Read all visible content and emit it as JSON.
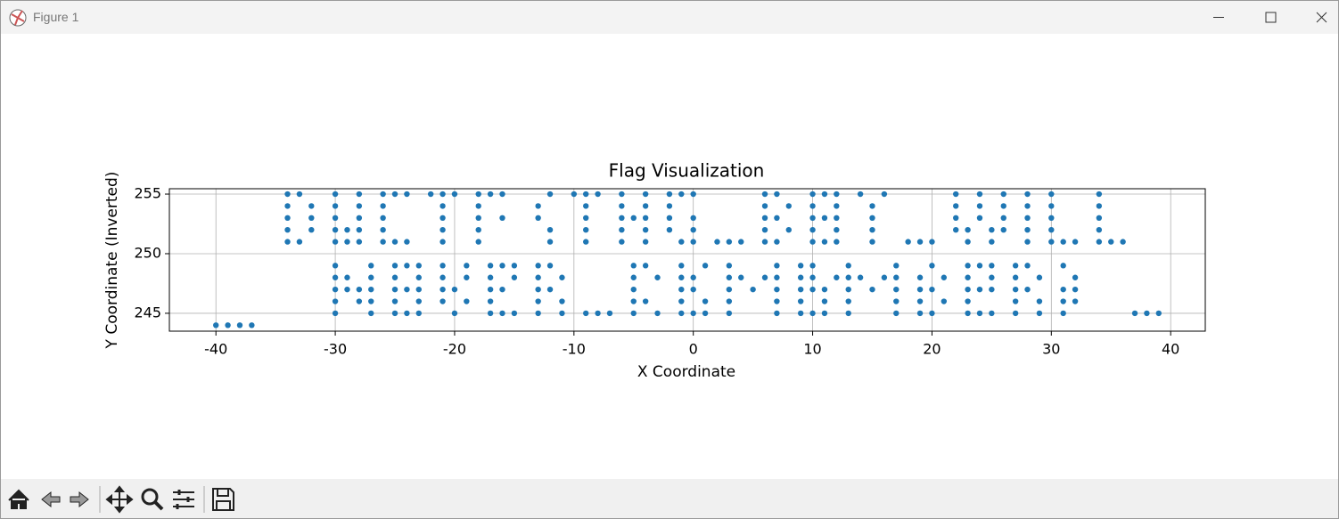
{
  "window": {
    "title": "Figure 1"
  },
  "chart_data": {
    "type": "scatter",
    "title": "Flag Visualization",
    "x_label": "X Coordinate",
    "y_label": "Y Coordinate (Inverted)",
    "color": "#1f77b4",
    "grid": true,
    "xlim": [
      -43.9,
      42.9
    ],
    "ylim": [
      243.5,
      255.45
    ],
    "xticks": [
      -40,
      -30,
      -20,
      -10,
      0,
      10,
      20,
      30,
      40
    ],
    "yticks": [
      245,
      250,
      255
    ],
    "x": [
      -34,
      -33,
      -30,
      -28,
      -26,
      -25,
      -24,
      -22,
      -21,
      -20,
      -18,
      -17,
      -16,
      -12,
      -10,
      -9,
      -8,
      -6,
      -4,
      -2,
      -1,
      0,
      6,
      7,
      10,
      11,
      12,
      14,
      16,
      22,
      24,
      26,
      28,
      30,
      34,
      -34,
      -32,
      -30,
      -28,
      -26,
      -21,
      -18,
      -13,
      -9,
      -6,
      -4,
      -2,
      6,
      8,
      10,
      12,
      15,
      22,
      24,
      26,
      28,
      30,
      34,
      -34,
      -32,
      -30,
      -28,
      -26,
      -21,
      -18,
      -16,
      -13,
      -9,
      -6,
      -5,
      -4,
      -2,
      0,
      6,
      7,
      10,
      11,
      12,
      15,
      22,
      24,
      26,
      28,
      30,
      34,
      -34,
      -32,
      -30,
      -29,
      -28,
      -26,
      -21,
      -18,
      -12,
      -9,
      -6,
      -4,
      -2,
      0,
      6,
      8,
      10,
      12,
      15,
      22,
      23,
      25,
      26,
      28,
      30,
      34,
      -34,
      -33,
      -30,
      -29,
      -28,
      -26,
      -25,
      -24,
      -21,
      -18,
      -12,
      -9,
      -6,
      -4,
      -1,
      0,
      2,
      3,
      4,
      6,
      7,
      10,
      11,
      12,
      15,
      18,
      19,
      20,
      23,
      25,
      28,
      30,
      31,
      32,
      34,
      35,
      36,
      -30,
      -27,
      -25,
      -24,
      -23,
      -21,
      -19,
      -17,
      -16,
      -15,
      -13,
      -12,
      -5,
      -4,
      -1,
      1,
      3,
      7,
      9,
      10,
      13,
      17,
      20,
      23,
      24,
      25,
      27,
      28,
      31,
      -30,
      -29,
      -27,
      -25,
      -23,
      -21,
      -19,
      -17,
      -15,
      -13,
      -11,
      -5,
      -3,
      -1,
      0,
      3,
      4,
      6,
      7,
      9,
      10,
      12,
      13,
      14,
      16,
      17,
      19,
      21,
      23,
      25,
      27,
      29,
      32,
      -30,
      -29,
      -28,
      -27,
      -25,
      -24,
      -23,
      -21,
      -20,
      -17,
      -16,
      -13,
      -12,
      -5,
      -1,
      0,
      3,
      5,
      7,
      9,
      10,
      11,
      13,
      15,
      17,
      19,
      20,
      23,
      24,
      25,
      27,
      28,
      31,
      32,
      -30,
      -28,
      -27,
      -25,
      -23,
      -21,
      -19,
      -17,
      -13,
      -11,
      -5,
      -4,
      -1,
      1,
      3,
      7,
      9,
      11,
      13,
      17,
      19,
      21,
      23,
      27,
      29,
      31,
      32,
      -30,
      -27,
      -25,
      -24,
      -23,
      -20,
      -17,
      -16,
      -15,
      -13,
      -11,
      -9,
      -8,
      -7,
      -5,
      -3,
      -1,
      0,
      1,
      3,
      7,
      9,
      10,
      11,
      13,
      17,
      19,
      20,
      23,
      24,
      25,
      27,
      29,
      31,
      37,
      38,
      39,
      -40,
      -39,
      -38,
      -37
    ],
    "values": [
      255,
      255,
      255,
      255,
      255,
      255,
      255,
      255,
      255,
      255,
      255,
      255,
      255,
      255,
      255,
      255,
      255,
      255,
      255,
      255,
      255,
      255,
      255,
      255,
      255,
      255,
      255,
      255,
      255,
      255,
      255,
      255,
      255,
      255,
      255,
      254,
      254,
      254,
      254,
      254,
      254,
      254,
      254,
      254,
      254,
      254,
      254,
      254,
      254,
      254,
      254,
      254,
      254,
      254,
      254,
      254,
      254,
      254,
      253,
      253,
      253,
      253,
      253,
      253,
      253,
      253,
      253,
      253,
      253,
      253,
      253,
      253,
      253,
      253,
      253,
      253,
      253,
      253,
      253,
      253,
      253,
      253,
      253,
      253,
      253,
      252,
      252,
      252,
      252,
      252,
      252,
      252,
      252,
      252,
      252,
      252,
      252,
      252,
      252,
      252,
      252,
      252,
      252,
      252,
      252,
      252,
      252,
      252,
      252,
      252,
      252,
      251,
      251,
      251,
      251,
      251,
      251,
      251,
      251,
      251,
      251,
      251,
      251,
      251,
      251,
      251,
      251,
      251,
      251,
      251,
      251,
      251,
      251,
      251,
      251,
      251,
      251,
      251,
      251,
      251,
      251,
      251,
      251,
      251,
      251,
      251,
      251,
      251,
      249,
      249,
      249,
      249,
      249,
      249,
      249,
      249,
      249,
      249,
      249,
      249,
      249,
      249,
      249,
      249,
      249,
      249,
      249,
      249,
      249,
      249,
      249,
      249,
      249,
      249,
      249,
      249,
      249,
      248,
      248,
      248,
      248,
      248,
      248,
      248,
      248,
      248,
      248,
      248,
      248,
      248,
      248,
      248,
      248,
      248,
      248,
      248,
      248,
      248,
      248,
      248,
      248,
      248,
      248,
      248,
      248,
      248,
      248,
      248,
      248,
      248,
      247,
      247,
      247,
      247,
      247,
      247,
      247,
      247,
      247,
      247,
      247,
      247,
      247,
      247,
      247,
      247,
      247,
      247,
      247,
      247,
      247,
      247,
      247,
      247,
      247,
      247,
      247,
      247,
      247,
      247,
      247,
      247,
      247,
      247,
      246,
      246,
      246,
      246,
      246,
      246,
      246,
      246,
      246,
      246,
      246,
      246,
      246,
      246,
      246,
      246,
      246,
      246,
      246,
      246,
      246,
      246,
      246,
      246,
      246,
      246,
      246,
      245,
      245,
      245,
      245,
      245,
      245,
      245,
      245,
      245,
      245,
      245,
      245,
      245,
      245,
      245,
      245,
      245,
      245,
      245,
      245,
      245,
      245,
      245,
      245,
      245,
      245,
      245,
      245,
      245,
      245,
      245,
      245,
      245,
      245,
      245,
      245,
      245,
      244,
      244,
      244,
      244
    ]
  }
}
